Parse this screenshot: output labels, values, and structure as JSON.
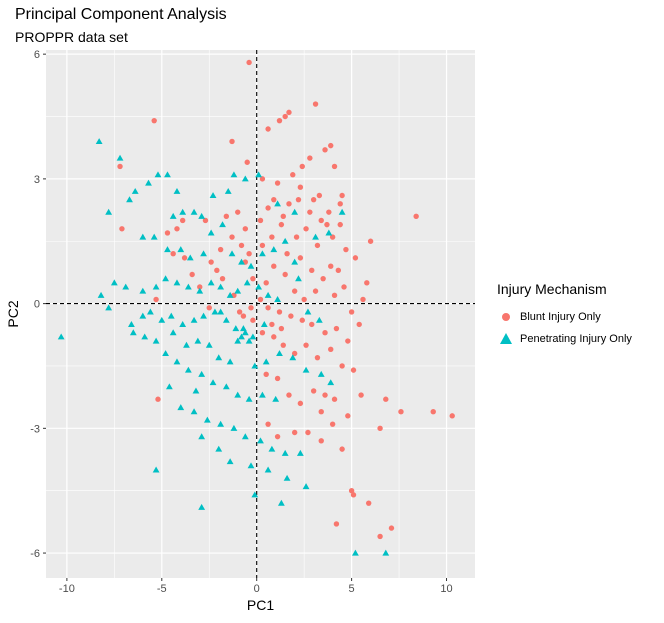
{
  "title": "Principal Component Analysis",
  "subtitle": "PROPPR data set",
  "chart_data": {
    "type": "scatter",
    "xlabel": "PC1",
    "ylabel": "PC2",
    "xlim": [
      -11.1,
      11.5
    ],
    "ylim": [
      -6.6,
      6.1
    ],
    "xticks": [
      -10,
      -5,
      0,
      5,
      10
    ],
    "yticks": [
      -6,
      -3,
      0,
      3,
      6
    ],
    "reference_lines": {
      "x": 0,
      "y": 0,
      "style": "dashed"
    },
    "panel_color": "#ebebeb",
    "grid": true,
    "legend_placement": "right",
    "legend_title": "Injury Mechanism",
    "series": [
      {
        "name": "Blunt Injury Only",
        "color": "#f8766d",
        "marker": "circle",
        "points": [
          [
            -0.4,
            5.8
          ],
          [
            1.7,
            4.6
          ],
          [
            1.5,
            4.5
          ],
          [
            1.2,
            4.4
          ],
          [
            3.1,
            4.8
          ],
          [
            3.9,
            3.8
          ],
          [
            3.6,
            3.7
          ],
          [
            2.8,
            3.5
          ],
          [
            2.4,
            3.3
          ],
          [
            4.1,
            3.3
          ],
          [
            -5.4,
            4.4
          ],
          [
            -1.3,
            3.9
          ],
          [
            -0.5,
            3.4
          ],
          [
            0.6,
            4.2
          ],
          [
            0.3,
            3.0
          ],
          [
            1.1,
            2.9
          ],
          [
            1.9,
            3.1
          ],
          [
            2.3,
            2.8
          ],
          [
            3.0,
            2.5
          ],
          [
            3.3,
            2.6
          ],
          [
            4.4,
            2.4
          ],
          [
            4.5,
            2.6
          ],
          [
            3.8,
            2.2
          ],
          [
            3.4,
            2.0
          ],
          [
            2.8,
            2.2
          ],
          [
            2.2,
            2.5
          ],
          [
            1.4,
            2.1
          ],
          [
            0.6,
            2.3
          ],
          [
            0.9,
            2.5
          ],
          [
            1.7,
            2.4
          ],
          [
            2.1,
            1.6
          ],
          [
            3.2,
            1.4
          ],
          [
            4.0,
            1.6
          ],
          [
            4.7,
            1.3
          ],
          [
            5.2,
            1.1
          ],
          [
            6.0,
            1.5
          ],
          [
            5.8,
            0.5
          ],
          [
            5.6,
            0.1
          ],
          [
            4.3,
            0.8
          ],
          [
            3.9,
            0.9
          ],
          [
            2.9,
            0.8
          ],
          [
            2.3,
            1.1
          ],
          [
            1.6,
            1.2
          ],
          [
            0.8,
            1.6
          ],
          [
            0.3,
            1.4
          ],
          [
            -0.4,
            1.2
          ],
          [
            -0.8,
            1.4
          ],
          [
            -1.3,
            1.6
          ],
          [
            -1.9,
            1.3
          ],
          [
            -2.4,
            1.0
          ],
          [
            -2.7,
            2.0
          ],
          [
            -1.6,
            2.1
          ],
          [
            -1.0,
            2.2
          ],
          [
            -0.6,
            1.8
          ],
          [
            0.2,
            2.0
          ],
          [
            1.3,
            1.9
          ],
          [
            2.6,
            1.8
          ],
          [
            3.7,
            1.9
          ],
          [
            4.4,
            1.9
          ],
          [
            8.4,
            2.1
          ],
          [
            -7.1,
            1.8
          ],
          [
            -7.2,
            3.3
          ],
          [
            -4.7,
            1.7
          ],
          [
            -4.2,
            1.8
          ],
          [
            -3.9,
            2.0
          ],
          [
            -0.2,
            0.6
          ],
          [
            0.5,
            0.5
          ],
          [
            0.9,
            0.9
          ],
          [
            1.5,
            0.7
          ],
          [
            2.0,
            0.3
          ],
          [
            2.5,
            0.1
          ],
          [
            3.1,
            0.3
          ],
          [
            3.5,
            0.6
          ],
          [
            4.1,
            0.2
          ],
          [
            4.6,
            0.4
          ],
          [
            5.0,
            -0.2
          ],
          [
            5.4,
            -0.5
          ],
          [
            4.8,
            -0.9
          ],
          [
            4.2,
            -0.6
          ],
          [
            3.6,
            -0.7
          ],
          [
            2.9,
            -0.5
          ],
          [
            2.4,
            -0.4
          ],
          [
            1.8,
            -0.3
          ],
          [
            1.2,
            -0.2
          ],
          [
            0.6,
            -0.1
          ],
          [
            0.2,
            0.1
          ],
          [
            -0.3,
            -0.1
          ],
          [
            -0.7,
            -0.3
          ],
          [
            0.9,
            -0.8
          ],
          [
            1.4,
            -1.0
          ],
          [
            2.0,
            -1.2
          ],
          [
            2.6,
            -1.0
          ],
          [
            3.2,
            -1.3
          ],
          [
            3.9,
            -1.1
          ],
          [
            4.5,
            -1.5
          ],
          [
            5.1,
            -1.6
          ],
          [
            5.5,
            -2.2
          ],
          [
            4.1,
            -2.3
          ],
          [
            3.6,
            -2.2
          ],
          [
            3.0,
            -2.1
          ],
          [
            2.3,
            -2.4
          ],
          [
            1.7,
            -2.2
          ],
          [
            1.1,
            -1.8
          ],
          [
            0.5,
            -1.7
          ],
          [
            -5.2,
            -2.3
          ],
          [
            3.4,
            -2.6
          ],
          [
            4.0,
            -2.9
          ],
          [
            4.8,
            -2.7
          ],
          [
            6.5,
            -3.0
          ],
          [
            7.6,
            -2.6
          ],
          [
            9.3,
            -2.6
          ],
          [
            10.3,
            -2.7
          ],
          [
            6.8,
            -2.3
          ],
          [
            2.0,
            -3.1
          ],
          [
            2.7,
            -3.1
          ],
          [
            3.4,
            -3.3
          ],
          [
            4.5,
            -3.5
          ],
          [
            5.0,
            -4.5
          ],
          [
            5.1,
            -4.6
          ],
          [
            5.9,
            -4.8
          ],
          [
            7.1,
            -5.4
          ],
          [
            4.2,
            -5.3
          ],
          [
            6.5,
            -5.6
          ],
          [
            1.1,
            -3.2
          ],
          [
            0.6,
            -2.9
          ],
          [
            -0.6,
            1.0
          ],
          [
            -1.8,
            0.6
          ],
          [
            -2.1,
            0.8
          ],
          [
            -1.2,
            0.2
          ],
          [
            -0.9,
            -0.2
          ],
          [
            -2.5,
            -0.1
          ],
          [
            -3.0,
            0.4
          ],
          [
            -3.4,
            0.7
          ],
          [
            -3.8,
            1.1
          ],
          [
            -4.4,
            1.2
          ],
          [
            -5.3,
            0.1
          ],
          [
            -0.2,
            -0.4
          ],
          [
            0.3,
            -0.7
          ],
          [
            0.8,
            -0.5
          ],
          [
            1.3,
            -0.6
          ]
        ]
      },
      {
        "name": "Penetrating Injury Only",
        "color": "#00bfc4",
        "marker": "triangle",
        "points": [
          [
            -8.3,
            3.9
          ],
          [
            -7.2,
            3.5
          ],
          [
            -5.2,
            3.1
          ],
          [
            -4.7,
            3.1
          ],
          [
            -5.7,
            2.9
          ],
          [
            -4.2,
            2.7
          ],
          [
            -6.4,
            2.7
          ],
          [
            -7.8,
            2.2
          ],
          [
            -6.7,
            2.5
          ],
          [
            -4.4,
            2.1
          ],
          [
            -3.9,
            2.2
          ],
          [
            -3.3,
            2.2
          ],
          [
            -2.9,
            2.1
          ],
          [
            -2.3,
            2.6
          ],
          [
            -1.5,
            2.7
          ],
          [
            -1.2,
            3.1
          ],
          [
            -0.6,
            3.0
          ],
          [
            0.1,
            3.1
          ],
          [
            1.1,
            2.4
          ],
          [
            2.0,
            2.2
          ],
          [
            3.1,
            1.6
          ],
          [
            3.8,
            1.7
          ],
          [
            4.5,
            2.2
          ],
          [
            -6.0,
            1.6
          ],
          [
            -5.4,
            1.6
          ],
          [
            -4.7,
            1.3
          ],
          [
            -4.0,
            1.3
          ],
          [
            -3.5,
            1.1
          ],
          [
            -2.8,
            1.2
          ],
          [
            -2.4,
            1.7
          ],
          [
            -1.8,
            1.9
          ],
          [
            -1.3,
            1.2
          ],
          [
            -0.8,
            1.0
          ],
          [
            -0.3,
            0.9
          ],
          [
            0.3,
            1.2
          ],
          [
            0.9,
            1.3
          ],
          [
            1.5,
            1.5
          ],
          [
            2.0,
            1.0
          ],
          [
            -7.5,
            0.5
          ],
          [
            -6.9,
            0.4
          ],
          [
            -6.0,
            0.3
          ],
          [
            -5.3,
            0.4
          ],
          [
            -4.8,
            0.6
          ],
          [
            -4.2,
            0.5
          ],
          [
            -3.6,
            0.4
          ],
          [
            -3.0,
            0.3
          ],
          [
            -2.4,
            0.5
          ],
          [
            -1.9,
            0.4
          ],
          [
            -1.4,
            0.2
          ],
          [
            -1.0,
            0.3
          ],
          [
            -0.5,
            0.5
          ],
          [
            0.1,
            0.4
          ],
          [
            0.6,
            0.2
          ],
          [
            1.1,
            0.1
          ],
          [
            -10.3,
            -0.8
          ],
          [
            -8.2,
            0.2
          ],
          [
            -7.8,
            -0.1
          ],
          [
            -6.6,
            -0.5
          ],
          [
            -5.6,
            -0.2
          ],
          [
            -5.0,
            -0.4
          ],
          [
            -4.5,
            -0.3
          ],
          [
            -3.9,
            -0.5
          ],
          [
            -3.3,
            -0.4
          ],
          [
            -2.8,
            -0.3
          ],
          [
            -2.2,
            -0.2
          ],
          [
            -1.6,
            -0.4
          ],
          [
            -1.1,
            -0.6
          ],
          [
            -0.6,
            -0.7
          ],
          [
            -0.2,
            -0.8
          ],
          [
            0.4,
            -0.5
          ],
          [
            -1.0,
            -0.9
          ],
          [
            -0.8,
            -0.8
          ],
          [
            -0.4,
            -0.9
          ],
          [
            -0.7,
            -0.6
          ],
          [
            1.2,
            -1.2
          ],
          [
            1.9,
            -1.3
          ],
          [
            2.6,
            -1.6
          ],
          [
            3.4,
            -1.7
          ],
          [
            3.9,
            -1.9
          ],
          [
            -5.3,
            -0.9
          ],
          [
            -4.8,
            -1.2
          ],
          [
            -4.2,
            -1.4
          ],
          [
            -3.6,
            -1.6
          ],
          [
            -2.9,
            -1.7
          ],
          [
            -2.3,
            -1.9
          ],
          [
            -1.6,
            -2.0
          ],
          [
            -1.0,
            -2.2
          ],
          [
            -0.4,
            -2.3
          ],
          [
            0.3,
            -2.2
          ],
          [
            1.0,
            -2.3
          ],
          [
            -4.0,
            -2.5
          ],
          [
            -3.3,
            -2.6
          ],
          [
            -2.6,
            -2.8
          ],
          [
            -1.9,
            -2.9
          ],
          [
            -1.2,
            -3.0
          ],
          [
            -0.6,
            -3.2
          ],
          [
            0.2,
            -3.3
          ],
          [
            0.8,
            -3.5
          ],
          [
            1.5,
            -3.6
          ],
          [
            2.3,
            -3.6
          ],
          [
            -2.9,
            -3.2
          ],
          [
            -2.0,
            -3.5
          ],
          [
            -1.4,
            -3.8
          ],
          [
            -0.3,
            -3.9
          ],
          [
            0.6,
            -4.0
          ],
          [
            1.6,
            -4.2
          ],
          [
            2.6,
            -4.4
          ],
          [
            -5.3,
            -4.0
          ],
          [
            -0.1,
            -4.6
          ],
          [
            1.3,
            -4.8
          ],
          [
            -2.9,
            -4.9
          ],
          [
            5.2,
            -6.0
          ],
          [
            6.8,
            -6.0
          ],
          [
            -1.9,
            -0.2
          ],
          [
            -2.5,
            -1.0
          ],
          [
            -3.1,
            -0.9
          ],
          [
            -3.7,
            -1.0
          ],
          [
            -4.4,
            -0.7
          ],
          [
            -5.9,
            -0.8
          ],
          [
            -0.1,
            -1.5
          ],
          [
            0.5,
            -1.4
          ],
          [
            -1.4,
            -1.4
          ],
          [
            -2.0,
            -1.3
          ],
          [
            -3.2,
            -2.1
          ],
          [
            -4.6,
            -2.0
          ],
          [
            2.2,
            0.6
          ],
          [
            2.7,
            -0.2
          ],
          [
            3.3,
            -0.4
          ],
          [
            -6.0,
            -0.3
          ],
          [
            -6.5,
            -0.7
          ]
        ]
      }
    ]
  }
}
